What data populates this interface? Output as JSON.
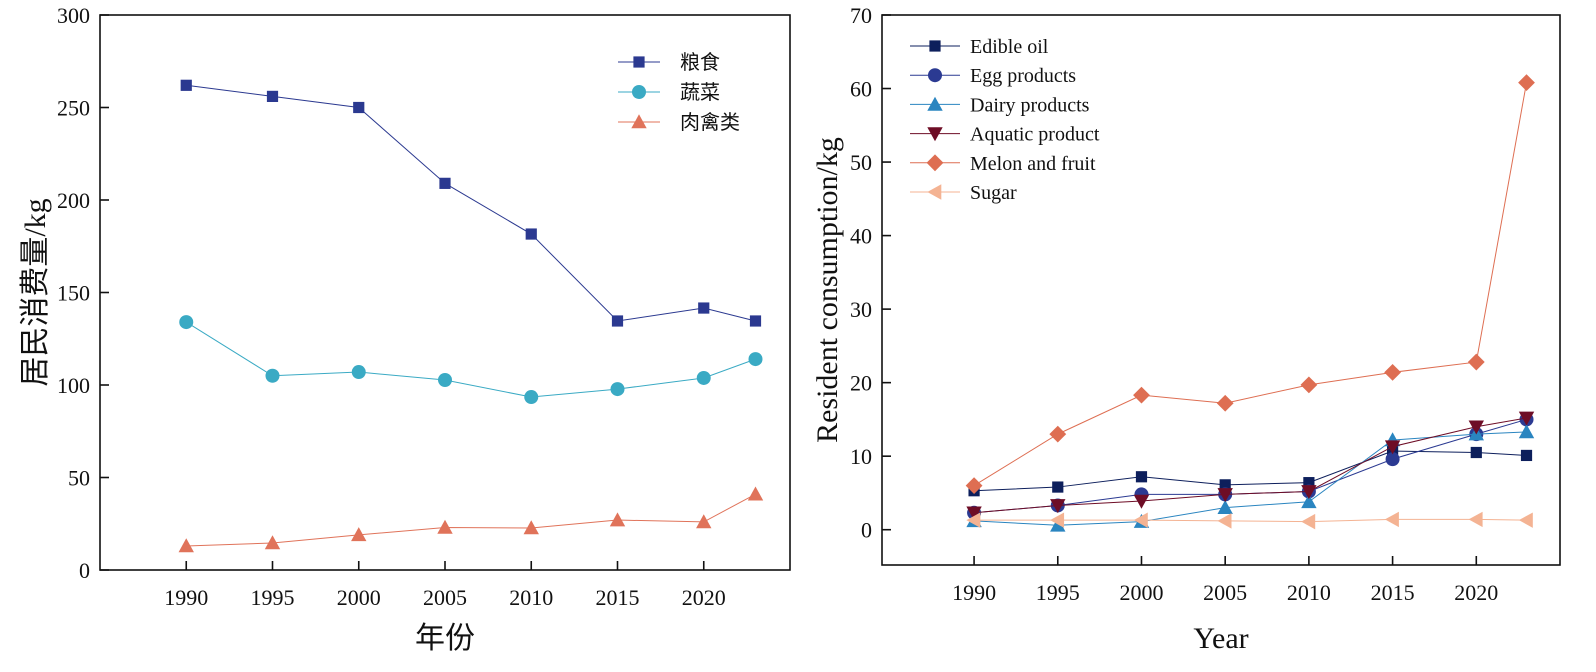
{
  "chart_data": [
    {
      "type": "line",
      "xlabel": "年份",
      "ylabel": "居民消费量/kg",
      "xlim": [
        1985,
        2025
      ],
      "ylim": [
        0,
        300
      ],
      "yticks": [
        0,
        50,
        100,
        150,
        200,
        250,
        300
      ],
      "xticks": [
        1990,
        1995,
        2000,
        2005,
        2010,
        2015,
        2020
      ],
      "legend": "top-right",
      "grid": false,
      "x": [
        1990,
        1995,
        2000,
        2005,
        2010,
        2015,
        2020,
        2023
      ],
      "series": [
        {
          "name": "粮食",
          "marker": "square",
          "color": "#2b3990",
          "values": [
            262,
            256,
            250,
            209,
            181.6,
            134.6,
            141.6,
            134.6
          ]
        },
        {
          "name": "蔬菜",
          "marker": "circle",
          "color": "#3aaac4",
          "values": [
            134,
            105,
            107,
            102.7,
            93.5,
            97.8,
            103.8,
            114
          ]
        },
        {
          "name": "肉禽类",
          "marker": "triangle-up",
          "color": "#e0735a",
          "values": [
            13,
            14.6,
            19,
            23,
            22.7,
            27,
            26,
            41
          ]
        }
      ]
    },
    {
      "type": "line",
      "xlabel": "Year",
      "ylabel": "Resident consumption/kg",
      "xlim": [
        1984.5,
        2025
      ],
      "ylim": [
        -4.8,
        70
      ],
      "yticks": [
        0,
        10,
        20,
        30,
        40,
        50,
        60,
        70
      ],
      "xticks": [
        1990,
        1995,
        2000,
        2005,
        2010,
        2015,
        2020
      ],
      "legend": "top-left",
      "grid": false,
      "x": [
        1990,
        1995,
        2000,
        2005,
        2010,
        2015,
        2020,
        2023
      ],
      "series": [
        {
          "name": "Edible oil",
          "marker": "square",
          "color": "#0d1f5c",
          "values": [
            5.3,
            5.8,
            7.2,
            6.1,
            6.4,
            10.7,
            10.5,
            10.1
          ]
        },
        {
          "name": "Egg products",
          "marker": "circle",
          "color": "#2b3a92",
          "values": [
            2.3,
            3.3,
            4.8,
            4.8,
            5.2,
            9.6,
            13,
            15
          ]
        },
        {
          "name": "Dairy products",
          "marker": "triangle-up",
          "color": "#2a85c0",
          "values": [
            1.2,
            0.6,
            1.1,
            3,
            3.8,
            12.2,
            13,
            13.3
          ]
        },
        {
          "name": "Aquatic product",
          "marker": "triangle-down",
          "color": "#6e0d26",
          "values": [
            2.3,
            3.3,
            3.9,
            4.8,
            5.2,
            11.3,
            14,
            15.2
          ]
        },
        {
          "name": "Melon and fruit",
          "marker": "diamond",
          "color": "#de6e52",
          "values": [
            6,
            13,
            18.3,
            17.2,
            19.7,
            21.4,
            22.8,
            60.8
          ]
        },
        {
          "name": "Sugar",
          "marker": "triangle-left",
          "color": "#f4b393",
          "values": [
            1.3,
            1.3,
            1.3,
            1.2,
            1.1,
            1.4,
            1.4,
            1.3
          ]
        }
      ]
    }
  ]
}
